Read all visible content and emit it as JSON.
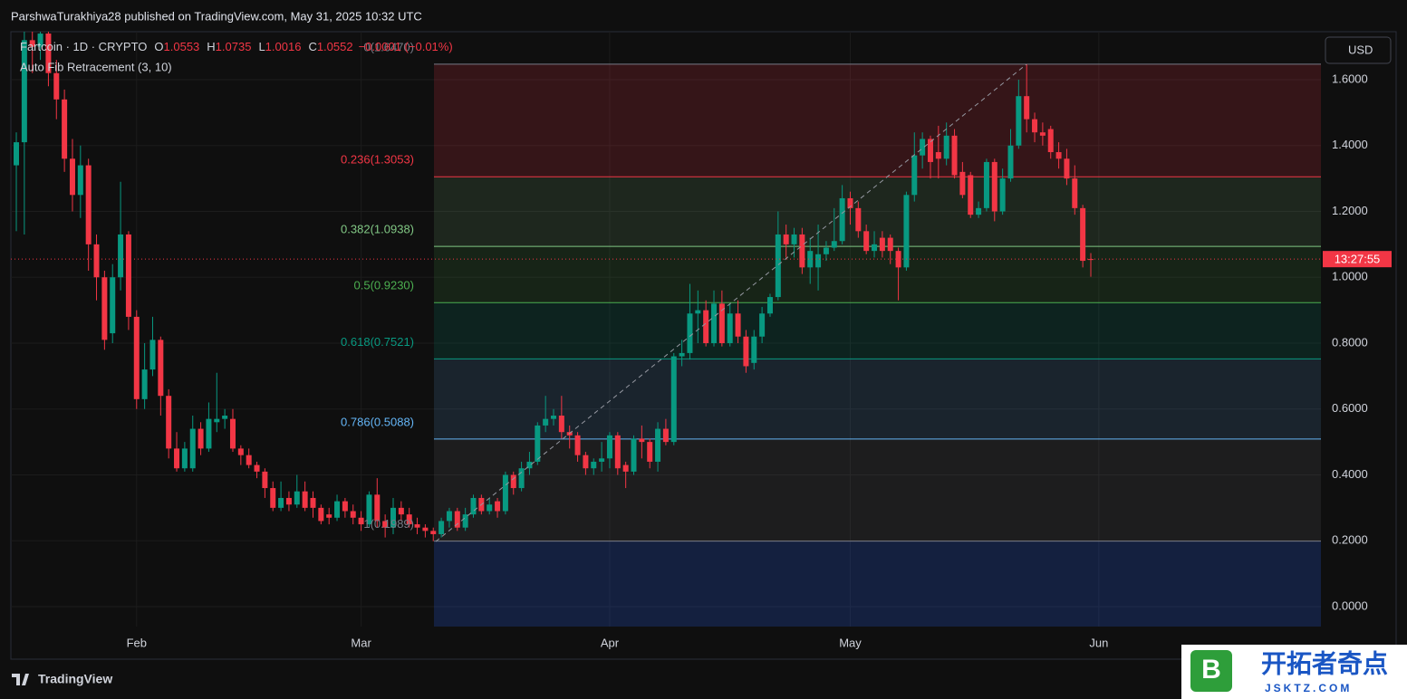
{
  "header": {
    "published": "ParshwaTurakhiya28 published on TradingView.com, May 31, 2025 10:32 UTC"
  },
  "chart_data": {
    "type": "candlestick",
    "symbol": "Fartcoin · 1D · CRYPTO",
    "ohlc_labels": [
      "O",
      "H",
      "L",
      "C"
    ],
    "change": "−0.0001 (−0.01%)",
    "indicator": "Auto Fib Retracement (3, 10)",
    "currency": "USD",
    "countdown": "13:27:55",
    "up_color": "#089981",
    "down_color": "#f23645",
    "grid": true,
    "xlim": [
      -0.68,
      162.7
    ],
    "xticks": [
      {
        "value": 15,
        "label": "Feb"
      },
      {
        "value": 43,
        "label": "Mar"
      },
      {
        "value": 74,
        "label": "Apr"
      },
      {
        "value": 104,
        "label": "May"
      },
      {
        "value": 135,
        "label": "Jun"
      }
    ],
    "ylim": [
      -0.0605,
      1.7457
    ],
    "yticks": [
      {
        "value": 0,
        "label": "0.0000"
      },
      {
        "value": 0.2,
        "label": "0.2000"
      },
      {
        "value": 0.4,
        "label": "0.4000"
      },
      {
        "value": 0.6,
        "label": "0.6000"
      },
      {
        "value": 0.8,
        "label": "0.8000"
      },
      {
        "value": 1,
        "label": "1.0000"
      },
      {
        "value": 1.2,
        "label": "1.2000"
      },
      {
        "value": 1.4,
        "label": "1.4000"
      },
      {
        "value": 1.6,
        "label": "1.6000"
      }
    ],
    "open": [
      1.34,
      1.41,
      1.72,
      1.7,
      1.74,
      1.62,
      1.54,
      1.36,
      1.25,
      1.34,
      1.1,
      1.0,
      0.83,
      1.0,
      1.13,
      0.88,
      0.63,
      0.72,
      0.81,
      0.64,
      0.48,
      0.42,
      0.42,
      0.54,
      0.48,
      0.56,
      0.57,
      0.57,
      0.48,
      0.46,
      0.43,
      0.41,
      0.36,
      0.3,
      0.33,
      0.31,
      0.35,
      0.33,
      0.3,
      0.28,
      0.27,
      0.32,
      0.29,
      0.27,
      0.25,
      0.34,
      0.26,
      0.24,
      0.3,
      0.28,
      0.25,
      0.24,
      0.23,
      0.22,
      0.26,
      0.29,
      0.24,
      0.28,
      0.33,
      0.29,
      0.32,
      0.29,
      0.4,
      0.36,
      0.42,
      0.44,
      0.55,
      0.57,
      0.58,
      0.53,
      0.52,
      0.46,
      0.42,
      0.44,
      0.45,
      0.52,
      0.43,
      0.41,
      0.51,
      0.5,
      0.44,
      0.54,
      0.5,
      0.76,
      0.77,
      0.89,
      0.9,
      0.8,
      0.92,
      0.8,
      0.89,
      0.82,
      0.74,
      0.82,
      0.89,
      0.94,
      1.13,
      1.1,
      1.13,
      1.03,
      1.03,
      1.07,
      1.09,
      1.11,
      1.24,
      1.21,
      1.14,
      1.08,
      1.12,
      1.12,
      1.08,
      1.03,
      1.25,
      1.37,
      1.42,
      1.38,
      1.36,
      1.43,
      1.32,
      1.31,
      1.19,
      1.21,
      1.35,
      1.2,
      1.3,
      1.4,
      1.55,
      1.48,
      1.44,
      1.45,
      1.38,
      1.36,
      1.3,
      1.21,
      1.0553
    ],
    "high": [
      1.44,
      1.76,
      1.76,
      1.76,
      1.76,
      1.66,
      1.57,
      1.42,
      1.4,
      1.36,
      1.13,
      1.02,
      1.04,
      1.29,
      1.14,
      0.9,
      0.8,
      0.88,
      0.82,
      0.66,
      0.53,
      0.5,
      0.58,
      0.56,
      0.62,
      0.71,
      0.6,
      0.6,
      0.49,
      0.48,
      0.44,
      0.42,
      0.38,
      0.38,
      0.35,
      0.4,
      0.38,
      0.35,
      0.31,
      0.3,
      0.34,
      0.33,
      0.31,
      0.29,
      0.35,
      0.39,
      0.28,
      0.33,
      0.32,
      0.3,
      0.27,
      0.25,
      0.24,
      0.27,
      0.3,
      0.3,
      0.3,
      0.34,
      0.34,
      0.33,
      0.33,
      0.41,
      0.41,
      0.44,
      0.47,
      0.56,
      0.64,
      0.6,
      0.64,
      0.55,
      0.53,
      0.47,
      0.45,
      0.5,
      0.53,
      0.53,
      0.44,
      0.52,
      0.55,
      0.51,
      0.56,
      0.57,
      0.77,
      0.81,
      0.98,
      0.96,
      0.93,
      0.96,
      0.96,
      0.92,
      0.93,
      0.84,
      0.84,
      0.91,
      0.95,
      1.2,
      1.16,
      1.15,
      1.15,
      1.12,
      1.16,
      1.11,
      1.21,
      1.28,
      1.26,
      1.23,
      1.16,
      1.14,
      1.14,
      1.13,
      1.09,
      1.26,
      1.44,
      1.44,
      1.43,
      1.46,
      1.47,
      1.45,
      1.35,
      1.32,
      1.23,
      1.36,
      1.36,
      1.33,
      1.45,
      1.6,
      1.647,
      1.5,
      1.47,
      1.46,
      1.41,
      1.39,
      1.34,
      1.22,
      1.0735
    ],
    "low": [
      1.14,
      1.13,
      1.62,
      1.66,
      1.58,
      1.48,
      1.32,
      1.2,
      1.18,
      1.02,
      0.93,
      0.78,
      0.8,
      0.96,
      0.84,
      0.6,
      0.6,
      0.7,
      0.58,
      0.45,
      0.41,
      0.41,
      0.41,
      0.46,
      0.47,
      0.53,
      0.54,
      0.47,
      0.43,
      0.42,
      0.39,
      0.33,
      0.29,
      0.29,
      0.29,
      0.3,
      0.29,
      0.27,
      0.25,
      0.25,
      0.26,
      0.27,
      0.25,
      0.23,
      0.24,
      0.24,
      0.21,
      0.22,
      0.26,
      0.24,
      0.22,
      0.21,
      0.1989,
      0.21,
      0.24,
      0.23,
      0.23,
      0.27,
      0.28,
      0.28,
      0.27,
      0.28,
      0.34,
      0.35,
      0.4,
      0.43,
      0.53,
      0.55,
      0.51,
      0.48,
      0.44,
      0.4,
      0.4,
      0.41,
      0.42,
      0.4,
      0.36,
      0.4,
      0.45,
      0.42,
      0.41,
      0.49,
      0.49,
      0.73,
      0.75,
      0.8,
      0.79,
      0.79,
      0.79,
      0.79,
      0.8,
      0.71,
      0.72,
      0.8,
      0.88,
      0.93,
      1.06,
      1.06,
      1.01,
      0.98,
      0.96,
      1.05,
      1.08,
      1.1,
      1.16,
      1.12,
      1.07,
      1.06,
      1.06,
      1.04,
      0.93,
      1.02,
      1.23,
      1.33,
      1.3,
      1.3,
      1.34,
      1.3,
      1.24,
      1.18,
      1.18,
      1.2,
      1.17,
      1.19,
      1.29,
      1.39,
      1.44,
      1.41,
      1.4,
      1.36,
      1.33,
      1.28,
      1.19,
      1.03,
      1.0016
    ],
    "close": [
      1.41,
      1.72,
      1.7,
      1.74,
      1.62,
      1.54,
      1.36,
      1.25,
      1.34,
      1.1,
      1.0,
      0.81,
      1.0,
      1.13,
      0.88,
      0.63,
      0.72,
      0.81,
      0.64,
      0.48,
      0.42,
      0.48,
      0.54,
      0.48,
      0.57,
      0.57,
      0.58,
      0.48,
      0.46,
      0.43,
      0.41,
      0.36,
      0.3,
      0.33,
      0.31,
      0.35,
      0.3,
      0.3,
      0.26,
      0.27,
      0.32,
      0.29,
      0.27,
      0.25,
      0.34,
      0.26,
      0.24,
      0.3,
      0.28,
      0.25,
      0.24,
      0.23,
      0.22,
      0.26,
      0.29,
      0.24,
      0.28,
      0.33,
      0.29,
      0.31,
      0.29,
      0.4,
      0.36,
      0.42,
      0.44,
      0.55,
      0.57,
      0.58,
      0.53,
      0.52,
      0.46,
      0.42,
      0.44,
      0.45,
      0.52,
      0.42,
      0.41,
      0.51,
      0.5,
      0.44,
      0.54,
      0.5,
      0.76,
      0.77,
      0.89,
      0.9,
      0.8,
      0.92,
      0.8,
      0.89,
      0.82,
      0.73,
      0.82,
      0.89,
      0.94,
      1.13,
      1.1,
      1.13,
      1.03,
      1.08,
      1.07,
      1.09,
      1.11,
      1.24,
      1.21,
      1.14,
      1.08,
      1.1,
      1.08,
      1.08,
      1.03,
      1.25,
      1.37,
      1.42,
      1.35,
      1.36,
      1.43,
      1.31,
      1.25,
      1.19,
      1.21,
      1.35,
      1.2,
      1.3,
      1.4,
      1.55,
      1.48,
      1.44,
      1.43,
      1.38,
      1.36,
      1.3,
      1.21,
      1.05,
      1.0552
    ],
    "fib": [
      {
        "label": "0(1.6470)",
        "price": 1.647,
        "color": "#787b86",
        "fill": "rgba(242,54,69,0.17)"
      },
      {
        "label": "0.236(1.3053)",
        "price": 1.3053,
        "color": "#f23645",
        "fill": "rgba(129,199,132,0.13)"
      },
      {
        "label": "0.382(1.0938)",
        "price": 1.0938,
        "color": "#81c784",
        "fill": "rgba(76,175,80,0.13)"
      },
      {
        "label": "0.5(0.9230)",
        "price": 0.923,
        "color": "#4caf50",
        "fill": "rgba(8,153,129,0.15)"
      },
      {
        "label": "0.618(0.7521)",
        "price": 0.7521,
        "color": "#089981",
        "fill": "rgba(100,181,246,0.13)"
      },
      {
        "label": "0.786(0.5088)",
        "price": 0.5088,
        "color": "#64b5f6",
        "fill": "rgba(120,123,134,0.13)"
      },
      {
        "label": "1(0.1989)",
        "price": 0.1989,
        "color": "#787b86",
        "fill": "rgba(41,98,255,0.2)"
      }
    ]
  },
  "footer": {
    "brand": "TradingView",
    "watermark": "开拓者奇点",
    "watermark_url": "JSKTZ.COM"
  }
}
